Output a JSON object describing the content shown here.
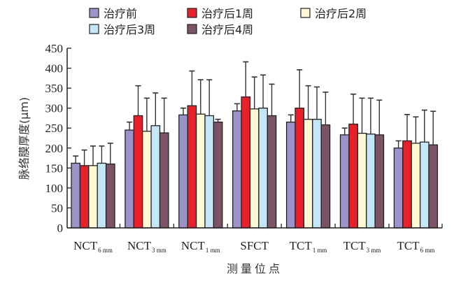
{
  "chart_data": {
    "type": "bar",
    "title": "",
    "xlabel": "测量位点",
    "ylabel": "脉络膜厚度(μm)",
    "ylim": [
      0,
      450
    ],
    "yticks": [
      "0",
      "50",
      "100",
      "150",
      "200",
      "250",
      "300",
      "350",
      "400",
      "450"
    ],
    "ytick_values": [
      0,
      50,
      100,
      150,
      200,
      250,
      300,
      350,
      400,
      450
    ],
    "grid": false,
    "legend_position": "top",
    "categories": [
      {
        "main": "NCT",
        "sub": "6 mm"
      },
      {
        "main": "NCT",
        "sub": "3 mm"
      },
      {
        "main": "NCT",
        "sub": "1 mm"
      },
      {
        "main": "SFCT",
        "sub": ""
      },
      {
        "main": "TCT",
        "sub": "1 mm"
      },
      {
        "main": "TCT",
        "sub": "3 mm"
      },
      {
        "main": "TCT",
        "sub": "6 mm"
      }
    ],
    "series": [
      {
        "name": "治疗前",
        "color": "#9b93c9",
        "values": [
          162,
          245,
          283,
          293,
          265,
          233,
          200
        ],
        "error_upper": [
          180,
          265,
          300,
          311,
          283,
          250,
          218
        ]
      },
      {
        "name": "治疗后1周",
        "color": "#e8202a",
        "values": [
          156,
          281,
          306,
          328,
          300,
          260,
          218
        ],
        "error_upper": [
          195,
          356,
          393,
          416,
          396,
          335,
          284
        ]
      },
      {
        "name": "治疗后2周",
        "color": "#fef8d4",
        "values": [
          156,
          242,
          285,
          298,
          272,
          237,
          212
        ],
        "error_upper": [
          205,
          325,
          371,
          378,
          356,
          325,
          278
        ]
      },
      {
        "name": "治疗后3周",
        "color": "#c4e6f6",
        "values": [
          162,
          256,
          281,
          300,
          272,
          235,
          215
        ],
        "error_upper": [
          205,
          338,
          371,
          383,
          353,
          325,
          295
        ]
      },
      {
        "name": "治疗后4周",
        "color": "#7a5366",
        "values": [
          160,
          238,
          265,
          281,
          258,
          233,
          208
        ],
        "error_upper": [
          212,
          325,
          272,
          360,
          340,
          320,
          292
        ]
      }
    ]
  }
}
